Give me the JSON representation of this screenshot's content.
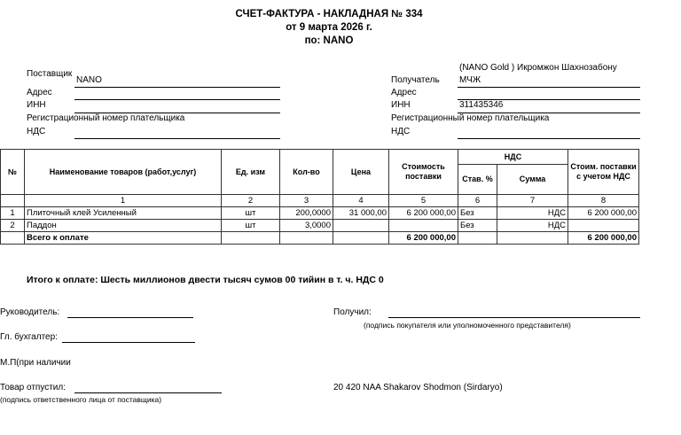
{
  "header": {
    "title": "СЧЕТ-ФАКТУРА - НАКЛАДНАЯ № 334",
    "date": "от 9 марта 2026 г.",
    "basis": "по: NANO"
  },
  "supplier": {
    "label": "Поставщик",
    "value": "NANO",
    "address_label": "Адрес",
    "inn_label": "ИНН",
    "reg_label": "Регистрационный номер плательщика",
    "nds_label": "НДС"
  },
  "recipient": {
    "label": "Получатель",
    "value_line1": "(NANO Gold ) Икромжон Шахнозабону",
    "value_line2": "МЧЖ",
    "address_label": "Адрес",
    "inn_label": "ИНН",
    "inn_value": "311435346",
    "reg_label": "Регистрационный номер плательщика",
    "nds_label": "НДС"
  },
  "table": {
    "headers": {
      "num": "№",
      "name": "Наименование товаров (работ,услуг)",
      "unit": "Ед. изм",
      "qty": "Кол-во",
      "price": "Цена",
      "cost": "Стоимость поставки",
      "nds": "НДС",
      "rate": "Став. %",
      "sum": "Сумма",
      "total": "Стоим. поставки с учетом НДС"
    },
    "col_numbers": [
      "1",
      "2",
      "3",
      "4",
      "5",
      "6",
      "7",
      "8"
    ],
    "rows": [
      {
        "num": "1",
        "name": "Плиточный клей Усиленный",
        "unit": "шт",
        "qty": "200,0000",
        "price": "31 000,00",
        "cost": "6 200 000,00",
        "rate": "Без",
        "sum": "НДС",
        "total": "6 200 000,00"
      },
      {
        "num": "2",
        "name": "Паддон",
        "unit": "шт",
        "qty": "3,0000",
        "price": "",
        "cost": "",
        "rate": "Без",
        "sum": "НДС",
        "total": ""
      }
    ],
    "footer": {
      "label": "Всего к оплате",
      "cost": "6 200 000,00",
      "total": "6 200 000,00"
    }
  },
  "summary": "Итого к оплате: Шесть миллионов двести тысяч сумов 00 тийин  в т. ч. НДС 0",
  "signatures": {
    "director": "Руководитель:",
    "received": "Получил:",
    "received_note": "(подпись покупателя или уполномоченного представителя)",
    "accountant": "Гл. бухгалтер:",
    "stamp": "М.П(при наличии",
    "released": "Товар  отпустил:",
    "released_note": "(подпись ответственного лица от поставщика)",
    "agent": "20 420 NAA Shakarov Shodmon (Sirdaryo)"
  }
}
